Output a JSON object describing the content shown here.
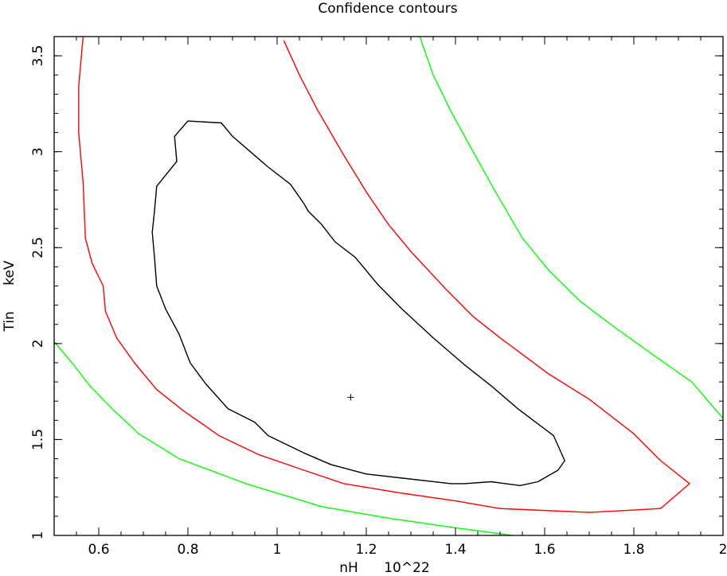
{
  "chart_data": {
    "type": "line",
    "title": "Confidence contours",
    "xlabel": "nH      10^22",
    "ylabel": "Tin      keV",
    "xlim": [
      0.5,
      2.0
    ],
    "ylim": [
      1.0,
      3.6
    ],
    "x_ticks": [
      0.6,
      0.8,
      1,
      1.2,
      1.4,
      1.6,
      1.8,
      2
    ],
    "x_tick_labels": [
      "0.6",
      "0.8",
      "1",
      "1.2",
      "1.4",
      "1.6",
      "1.8",
      "2"
    ],
    "y_ticks": [
      1,
      1.5,
      2,
      2.5,
      3,
      3.5
    ],
    "y_tick_labels": [
      "1",
      "1.5",
      "2",
      "2.5",
      "3",
      "3.5"
    ],
    "grid": false,
    "best_fit": {
      "x": 1.165,
      "y": 1.72,
      "marker": "+",
      "color": "#000000"
    },
    "series": [
      {
        "color": "#000000",
        "closed": true,
        "points": [
          [
            0.8,
            3.16
          ],
          [
            0.875,
            3.15
          ],
          [
            0.9,
            3.08
          ],
          [
            0.94,
            3.0
          ],
          [
            0.98,
            2.92
          ],
          [
            1.03,
            2.83
          ],
          [
            1.06,
            2.73
          ],
          [
            1.07,
            2.69
          ],
          [
            1.1,
            2.62
          ],
          [
            1.13,
            2.53
          ],
          [
            1.175,
            2.45
          ],
          [
            1.225,
            2.31
          ],
          [
            1.28,
            2.18
          ],
          [
            1.35,
            2.03
          ],
          [
            1.42,
            1.89
          ],
          [
            1.48,
            1.78
          ],
          [
            1.54,
            1.66
          ],
          [
            1.62,
            1.52
          ],
          [
            1.645,
            1.39
          ],
          [
            1.63,
            1.34
          ],
          [
            1.585,
            1.28
          ],
          [
            1.545,
            1.26
          ],
          [
            1.48,
            1.28
          ],
          [
            1.42,
            1.27
          ],
          [
            1.39,
            1.27
          ],
          [
            1.2,
            1.32
          ],
          [
            1.12,
            1.37
          ],
          [
            1.06,
            1.43
          ],
          [
            0.98,
            1.52
          ],
          [
            0.95,
            1.59
          ],
          [
            0.89,
            1.66
          ],
          [
            0.84,
            1.79
          ],
          [
            0.805,
            1.9
          ],
          [
            0.78,
            2.05
          ],
          [
            0.75,
            2.18
          ],
          [
            0.73,
            2.3
          ],
          [
            0.725,
            2.45
          ],
          [
            0.72,
            2.58
          ],
          [
            0.725,
            2.69
          ],
          [
            0.73,
            2.82
          ],
          [
            0.775,
            2.95
          ],
          [
            0.77,
            3.08
          ]
        ]
      },
      {
        "color": "#ff0000",
        "closed": false,
        "points": [
          [
            0.565,
            3.6
          ],
          [
            0.555,
            3.34
          ],
          [
            0.555,
            3.1
          ],
          [
            0.565,
            2.84
          ],
          [
            0.57,
            2.55
          ],
          [
            0.585,
            2.42
          ],
          [
            0.61,
            2.3
          ],
          [
            0.615,
            2.17
          ],
          [
            0.64,
            2.03
          ],
          [
            0.68,
            1.9
          ],
          [
            0.73,
            1.76
          ],
          [
            0.79,
            1.65
          ],
          [
            0.87,
            1.52
          ],
          [
            0.96,
            1.42
          ],
          [
            1.06,
            1.34
          ],
          [
            1.15,
            1.27
          ],
          [
            1.28,
            1.22
          ],
          [
            1.4,
            1.18
          ],
          [
            1.5,
            1.14
          ],
          [
            1.7,
            1.12
          ],
          [
            1.86,
            1.14
          ],
          [
            1.925,
            1.27
          ],
          [
            1.86,
            1.39
          ],
          [
            1.8,
            1.53
          ],
          [
            1.7,
            1.71
          ],
          [
            1.61,
            1.84
          ],
          [
            1.5,
            2.03
          ],
          [
            1.44,
            2.14
          ],
          [
            1.38,
            2.28
          ],
          [
            1.3,
            2.48
          ],
          [
            1.25,
            2.62
          ],
          [
            1.2,
            2.79
          ],
          [
            1.15,
            2.98
          ],
          [
            1.09,
            3.22
          ],
          [
            1.05,
            3.4
          ],
          [
            1.015,
            3.58
          ]
        ]
      },
      {
        "color": "#00ff00",
        "closed": false,
        "points": [
          [
            0.5,
            2.01
          ],
          [
            0.54,
            1.9
          ],
          [
            0.58,
            1.78
          ],
          [
            0.63,
            1.66
          ],
          [
            0.69,
            1.53
          ],
          [
            0.78,
            1.4
          ],
          [
            0.93,
            1.27
          ],
          [
            1.1,
            1.15
          ],
          [
            1.25,
            1.09
          ],
          [
            1.4,
            1.04
          ],
          [
            1.56,
            0.99
          ]
        ]
      },
      {
        "color": "#00ff00",
        "closed": false,
        "points": [
          [
            1.32,
            3.6
          ],
          [
            1.35,
            3.4
          ],
          [
            1.39,
            3.21
          ],
          [
            1.43,
            3.04
          ],
          [
            1.49,
            2.79
          ],
          [
            1.55,
            2.55
          ],
          [
            1.61,
            2.38
          ],
          [
            1.68,
            2.22
          ],
          [
            1.76,
            2.08
          ],
          [
            1.85,
            1.93
          ],
          [
            1.93,
            1.8
          ],
          [
            2.0,
            1.61
          ]
        ]
      }
    ]
  }
}
